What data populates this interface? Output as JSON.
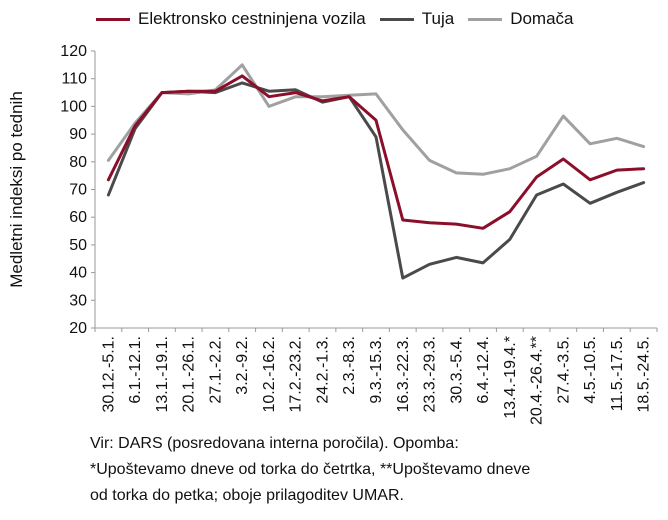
{
  "chart_data": {
    "type": "line",
    "ylabel": "Medletni indeksi po tednih",
    "ylim": [
      20,
      120
    ],
    "yticks": [
      20,
      30,
      40,
      50,
      60,
      70,
      80,
      90,
      100,
      110,
      120
    ],
    "grid": false,
    "legend_position": "top",
    "categories": [
      "30.12.-5.1.",
      "6.1.-12.1.",
      "13.1.-19.1.",
      "20.1.-26.1.",
      "27.1.-2.2.",
      "3.2.-9.2.",
      "10.2.-16.2.",
      "17.2.-23.2.",
      "24.2.-1.3.",
      "2.3.-8.3.",
      "9.3.-15.3.",
      "16.3.-22.3.",
      "23.3.-29.3.",
      "30.3.-5.4.",
      "6.4.-12.4.",
      "13.4.-19.4.*",
      "20.4.-26.4.**",
      "27.4.-3.5.",
      "4.5.-10.5.",
      "11.5.-17.5.",
      "18.5.-24.5."
    ],
    "series": [
      {
        "name": "Elektronsko cestninjena vozila",
        "color": "#8B0E2A",
        "values": [
          73.5,
          93,
          105,
          105.5,
          105.5,
          111,
          103.5,
          105,
          102,
          103.5,
          95,
          59,
          58,
          57.5,
          56,
          62,
          74.5,
          81,
          73.5,
          77,
          77.5
        ]
      },
      {
        "name": "Tuja",
        "color": "#4A4A4A",
        "values": [
          68,
          92,
          105,
          105.5,
          105,
          108.5,
          105.5,
          106,
          101.5,
          103.5,
          89,
          38,
          43,
          45.5,
          43.5,
          52,
          68,
          72,
          65,
          69,
          72.5
        ]
      },
      {
        "name": "Domača",
        "color": "#A0A0A0",
        "values": [
          80.5,
          94,
          105,
          104.5,
          106,
          115,
          100,
          103.5,
          103.5,
          104,
          104.5,
          91.5,
          80.5,
          76,
          75.5,
          77.5,
          82,
          96.5,
          86.5,
          88.5,
          85.5
        ]
      }
    ]
  },
  "note": {
    "line1": "Vir: DARS (posredovana interna poročila). Opomba:",
    "line2": "*Upoštevamo dneve od torka do četrtka, **Upoštevamo dneve",
    "line3": "od torka do petka; oboje prilagoditev UMAR."
  }
}
